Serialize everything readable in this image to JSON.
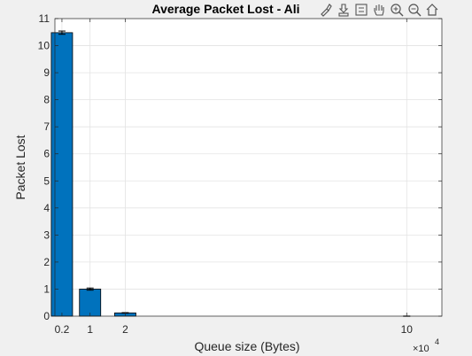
{
  "chart_data": {
    "type": "bar",
    "title": "Average Packet Lost - Ali",
    "xlabel": "Queue size (Bytes)",
    "ylabel": "Packet Lost",
    "x_exponent_label": "×10",
    "x_exponent_power": "4",
    "x": [
      2000,
      10000,
      20000,
      100000
    ],
    "values": [
      10.48,
      1.0,
      0.12,
      0.0
    ],
    "errors": [
      0.06,
      0.04,
      0.01,
      0.005
    ],
    "xlim": [
      0,
      110000
    ],
    "ylim": [
      0,
      11
    ],
    "x_tick_values": [
      2000,
      10000,
      20000,
      100000
    ],
    "x_tick_labels": [
      "0.2",
      "1",
      "2",
      "10"
    ],
    "y_tick_values": [
      0,
      1,
      2,
      3,
      4,
      5,
      6,
      7,
      8,
      9,
      10,
      11
    ],
    "y_tick_labels": [
      "0",
      "1",
      "2",
      "3",
      "4",
      "5",
      "6",
      "7",
      "8",
      "9",
      "10",
      "11"
    ],
    "grid": true,
    "bar_color": "#0072bd",
    "axis_color": "#262626"
  },
  "toolbar": {
    "icons": [
      "brush-icon",
      "datatip-icon",
      "legend-icon",
      "pan-icon",
      "zoom-in-icon",
      "zoom-out-icon",
      "home-icon"
    ]
  }
}
